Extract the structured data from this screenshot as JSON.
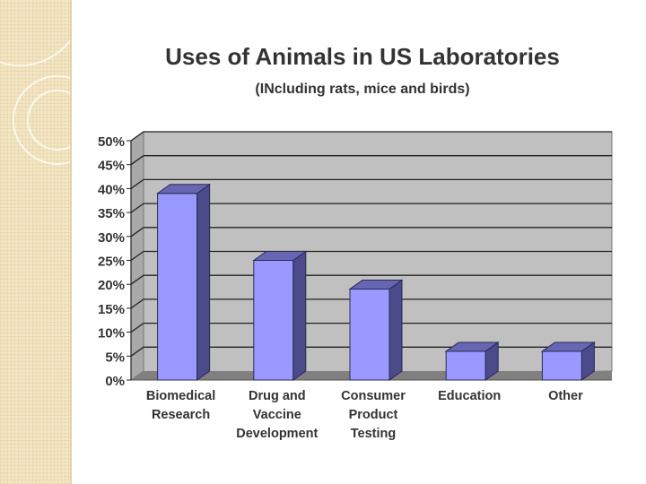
{
  "slide": {
    "title": "Uses of Animals in US Laboratories",
    "subtitle": "(INcluding rats, mice and birds)"
  },
  "theme": {
    "sidebar_color": "#f3e6c4",
    "bar_front": "#9999ff",
    "bar_side": "#4b4b8c",
    "bar_top": "#6666b3",
    "plot_background": "#c0c0c0",
    "floor_color": "#808080",
    "text_color": "#333333"
  },
  "chart_data": {
    "type": "bar",
    "title": "Uses of Animals in US Laboratories",
    "subtitle": "(INcluding rats, mice and birds)",
    "categories": [
      [
        "Biomedical",
        "Research"
      ],
      [
        "Drug and",
        "Vaccine",
        "Development"
      ],
      [
        "Consumer",
        "Product",
        "Testing"
      ],
      [
        "Education"
      ],
      [
        "Other"
      ]
    ],
    "values": [
      39,
      25,
      19,
      6,
      6
    ],
    "unit": "%",
    "ylim": [
      0,
      50
    ],
    "yticks": [
      0,
      5,
      10,
      15,
      20,
      25,
      30,
      35,
      40,
      45,
      50
    ],
    "ytick_labels": [
      "0%",
      "5%",
      "10%",
      "15%",
      "20%",
      "25%",
      "30%",
      "35%",
      "40%",
      "45%",
      "50%"
    ],
    "xlabel": "",
    "ylabel": "",
    "grid": true,
    "style": "3d",
    "legend": "none"
  }
}
